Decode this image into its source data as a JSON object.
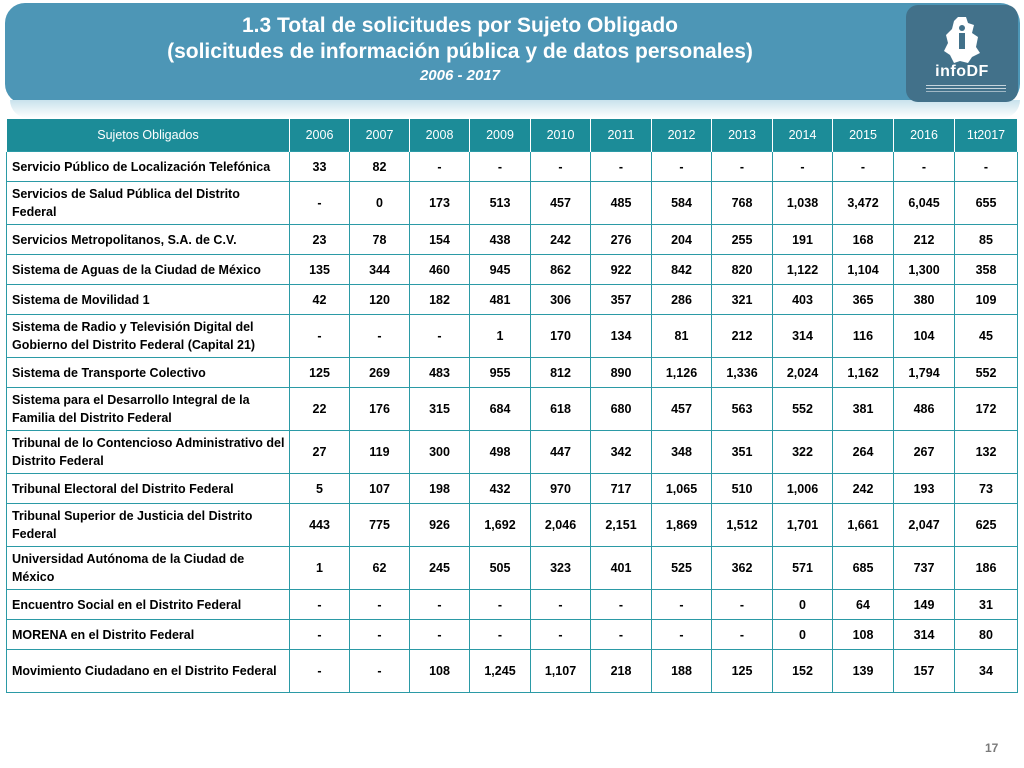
{
  "header": {
    "title": "1.3 Total de solicitudes por Sujeto Obligado",
    "subtitle": "(solicitudes de información pública y de datos personales)",
    "period": "2006 - 2017",
    "logo_text": "infoDF",
    "colors": {
      "banner": "#4d96b6",
      "table_header": "#1c8c98",
      "border": "#2b9aa6"
    }
  },
  "table": {
    "columns": [
      "Sujetos Obligados",
      "2006",
      "2007",
      "2008",
      "2009",
      "2010",
      "2011",
      "2012",
      "2013",
      "2014",
      "2015",
      "2016",
      "1t2017"
    ],
    "rows": [
      {
        "name": "Servicio Público de Localización Telefónica",
        "values": [
          "33",
          "82",
          "-",
          "-",
          "-",
          "-",
          "-",
          "-",
          "-",
          "-",
          "-",
          "-"
        ]
      },
      {
        "name": "Servicios de Salud Pública del Distrito Federal",
        "values": [
          "-",
          "0",
          "173",
          "513",
          "457",
          "485",
          "584",
          "768",
          "1,038",
          "3,472",
          "6,045",
          "655"
        ]
      },
      {
        "name": "Servicios Metropolitanos, S.A. de C.V.",
        "values": [
          "23",
          "78",
          "154",
          "438",
          "242",
          "276",
          "204",
          "255",
          "191",
          "168",
          "212",
          "85"
        ]
      },
      {
        "name": "Sistema de Aguas de la Ciudad de México",
        "values": [
          "135",
          "344",
          "460",
          "945",
          "862",
          "922",
          "842",
          "820",
          "1,122",
          "1,104",
          "1,300",
          "358"
        ]
      },
      {
        "name": "Sistema de Movilidad 1",
        "values": [
          "42",
          "120",
          "182",
          "481",
          "306",
          "357",
          "286",
          "321",
          "403",
          "365",
          "380",
          "109"
        ]
      },
      {
        "name": "Sistema de Radio y Televisión Digital del Gobierno del Distrito Federal (Capital 21)",
        "values": [
          "-",
          "-",
          "-",
          "1",
          "170",
          "134",
          "81",
          "212",
          "314",
          "116",
          "104",
          "45"
        ]
      },
      {
        "name": "Sistema de Transporte Colectivo",
        "values": [
          "125",
          "269",
          "483",
          "955",
          "812",
          "890",
          "1,126",
          "1,336",
          "2,024",
          "1,162",
          "1,794",
          "552"
        ]
      },
      {
        "name": "Sistema para el Desarrollo Integral de la Familia del Distrito Federal",
        "values": [
          "22",
          "176",
          "315",
          "684",
          "618",
          "680",
          "457",
          "563",
          "552",
          "381",
          "486",
          "172"
        ]
      },
      {
        "name": "Tribunal de lo Contencioso Administrativo del Distrito Federal",
        "values": [
          "27",
          "119",
          "300",
          "498",
          "447",
          "342",
          "348",
          "351",
          "322",
          "264",
          "267",
          "132"
        ]
      },
      {
        "name": "Tribunal Electoral del Distrito Federal",
        "values": [
          "5",
          "107",
          "198",
          "432",
          "970",
          "717",
          "1,065",
          "510",
          "1,006",
          "242",
          "193",
          "73"
        ]
      },
      {
        "name": "Tribunal Superior de Justicia del Distrito Federal",
        "values": [
          "443",
          "775",
          "926",
          "1,692",
          "2,046",
          "2,151",
          "1,869",
          "1,512",
          "1,701",
          "1,661",
          "2,047",
          "625"
        ]
      },
      {
        "name": "Universidad Autónoma de la Ciudad de México",
        "values": [
          "1",
          "62",
          "245",
          "505",
          "323",
          "401",
          "525",
          "362",
          "571",
          "685",
          "737",
          "186"
        ]
      },
      {
        "name": "Encuentro Social en el Distrito Federal",
        "values": [
          "-",
          "-",
          "-",
          "-",
          "-",
          "-",
          "-",
          "-",
          "0",
          "64",
          "149",
          "31"
        ]
      },
      {
        "name": "MORENA en el Distrito Federal",
        "values": [
          "-",
          "-",
          "-",
          "-",
          "-",
          "-",
          "-",
          "-",
          "0",
          "108",
          "314",
          "80"
        ]
      },
      {
        "name": "Movimiento Ciudadano en el Distrito Federal",
        "values": [
          "-",
          "-",
          "108",
          "1,245",
          "1,107",
          "218",
          "188",
          "125",
          "152",
          "139",
          "157",
          "34"
        ]
      }
    ]
  },
  "footer": {
    "page_number": "17"
  }
}
